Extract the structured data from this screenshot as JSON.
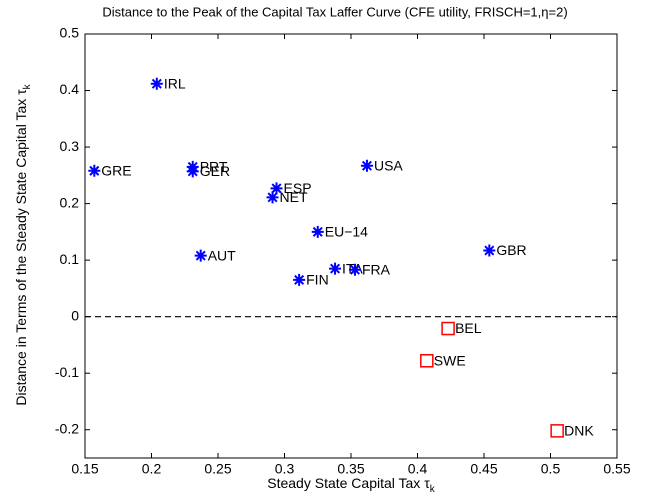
{
  "chart_data": {
    "type": "scatter",
    "title": "Distance to the Peak of the Capital Tax Laffer Curve (CFE utility, FRISCH=1,η=2)",
    "xlabel": "Steady State Capital Tax τ",
    "xlabel_sub": "k",
    "ylabel": "Distance in Terms of the Steady State Capital Tax τ",
    "ylabel_sub": "k",
    "xlim": [
      0.15,
      0.55
    ],
    "xticks": [
      0.15,
      0.2,
      0.25,
      0.3,
      0.35,
      0.4,
      0.45,
      0.5,
      0.55
    ],
    "ylim": [
      -0.25,
      0.5
    ],
    "yticks": [
      -0.2,
      -0.1,
      0,
      0.1,
      0.2,
      0.3,
      0.4,
      0.5
    ],
    "reference_line": 0,
    "series": [
      {
        "color": "#0000ff",
        "marker": "star",
        "labels": [
          "IRL",
          "GRE",
          "PRT",
          "GER",
          "ESP",
          "NET",
          "USA",
          "EU−14",
          "AUT",
          "GBR",
          "FIN",
          "ITA",
          "FRA"
        ],
        "x": [
          0.204,
          0.157,
          0.231,
          0.231,
          0.294,
          0.291,
          0.362,
          0.325,
          0.237,
          0.454,
          0.311,
          0.338,
          0.353
        ],
        "y": [
          0.412,
          0.258,
          0.265,
          0.257,
          0.227,
          0.211,
          0.267,
          0.15,
          0.108,
          0.117,
          0.065,
          0.085,
          0.083
        ]
      },
      {
        "color": "#ff0000",
        "marker": "square",
        "labels": [
          "BEL",
          "SWE",
          "DNK"
        ],
        "x": [
          0.423,
          0.407,
          0.505
        ],
        "y": [
          -0.021,
          -0.078,
          -0.202
        ]
      }
    ]
  }
}
